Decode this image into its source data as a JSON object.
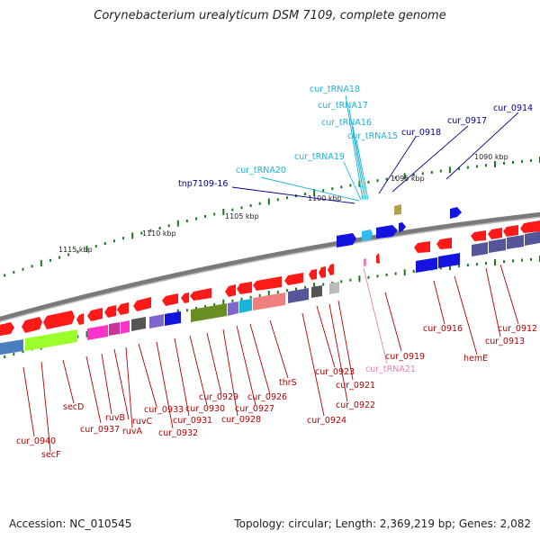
{
  "title": "Corynebacterium urealyticum DSM 7109, complete genome",
  "footer": {
    "accession": "Accession: NC_010545",
    "topology": "Topology: circular; Length: 2,369,219 bp; Genes: 2,082"
  },
  "scale_labels": [
    "1090 kbp",
    "1095 kbp",
    "1100 kbp",
    "1105 kbp",
    "1110 kbp",
    "1115 kbp"
  ],
  "colors": {
    "forward_gene": "#ff0000",
    "reverse_gene": "#ff0000",
    "trna": "#1ab2d6",
    "trna_rev": "#e67fb2",
    "label_blue": "#00008b",
    "label_cyan": "#1ab2d6",
    "label_red": "#b40000",
    "label_pink": "#e67fb2",
    "backbone": "#808080",
    "tick": "#1a7a1a"
  },
  "labels_top": [
    {
      "text": "cur_tRNA18",
      "color": "cyan"
    },
    {
      "text": "cur_tRNA17",
      "color": "cyan"
    },
    {
      "text": "cur_tRNA16",
      "color": "cyan"
    },
    {
      "text": "cur_tRNA15",
      "color": "cyan"
    },
    {
      "text": "cur_tRNA19",
      "color": "cyan"
    },
    {
      "text": "cur_tRNA20",
      "color": "cyan"
    },
    {
      "text": "tnp7109-16",
      "color": "blue"
    },
    {
      "text": "cur_0918",
      "color": "blue"
    },
    {
      "text": "cur_0917",
      "color": "blue"
    },
    {
      "text": "cur_0914",
      "color": "blue"
    }
  ],
  "labels_bottom": [
    {
      "text": "cur_0940",
      "color": "red"
    },
    {
      "text": "secF",
      "color": "red"
    },
    {
      "text": "secD",
      "color": "red"
    },
    {
      "text": "cur_0937",
      "color": "red"
    },
    {
      "text": "ruvB",
      "color": "red"
    },
    {
      "text": "ruvC",
      "color": "red"
    },
    {
      "text": "ruvA",
      "color": "red"
    },
    {
      "text": "cur_0933",
      "color": "red"
    },
    {
      "text": "cur_0932",
      "color": "red"
    },
    {
      "text": "cur_0931",
      "color": "red"
    },
    {
      "text": "cur_0930",
      "color": "red"
    },
    {
      "text": "cur_0929",
      "color": "red"
    },
    {
      "text": "cur_0928",
      "color": "red"
    },
    {
      "text": "cur_0927",
      "color": "red"
    },
    {
      "text": "cur_0926",
      "color": "red"
    },
    {
      "text": "thrS",
      "color": "red"
    },
    {
      "text": "cur_0924",
      "color": "red"
    },
    {
      "text": "cur_0923",
      "color": "red"
    },
    {
      "text": "cur_0922",
      "color": "red"
    },
    {
      "text": "cur_0921",
      "color": "red"
    },
    {
      "text": "cur_tRNA21",
      "color": "pink"
    },
    {
      "text": "cur_0919",
      "color": "red"
    },
    {
      "text": "hemE",
      "color": "red"
    },
    {
      "text": "cur_0916",
      "color": "red"
    },
    {
      "text": "cur_0913",
      "color": "red"
    },
    {
      "text": "cur_0912",
      "color": "red"
    }
  ]
}
